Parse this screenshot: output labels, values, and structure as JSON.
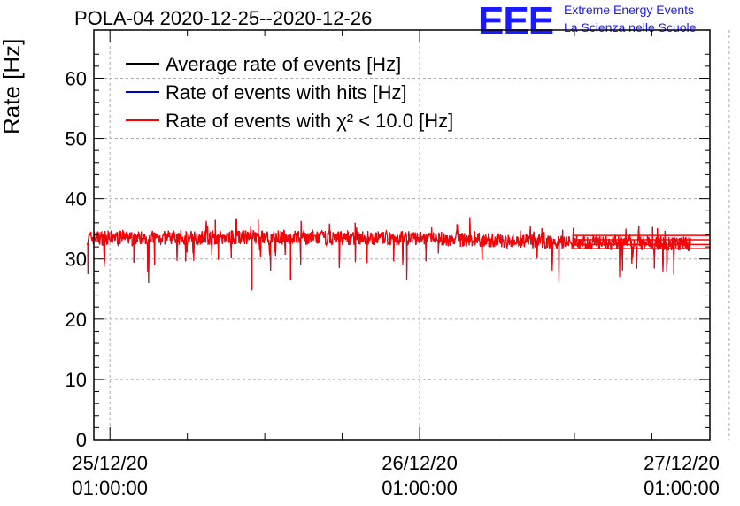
{
  "header": {
    "title": "POLA-04 2020-12-25--2020-12-26",
    "logo_text": "EEE",
    "logo_line1": "Extreme Energy Events",
    "logo_line2": "La Scienza nelle Scuole",
    "logo_color": "#1a1aff"
  },
  "chart_data": {
    "type": "line",
    "title": "POLA-04 2020-12-25--2020-12-26",
    "ylabel": "Rate [Hz]",
    "xlabel": "",
    "ylim": [
      0,
      68
    ],
    "yticks": [
      0,
      10,
      20,
      30,
      40,
      50,
      60
    ],
    "xlim_hours": [
      -1.25,
      46.5
    ],
    "x_axis_note": "time axis; tick labels show date and time",
    "xticks": [
      {
        "label_date": "25/12/20",
        "label_time": "01:00:00",
        "hours": 0
      },
      {
        "label_date": "26/12/20",
        "label_time": "01:00:00",
        "hours": 24
      },
      {
        "label_date": "27/12/20",
        "label_time": "01:00:00",
        "hours": 48
      }
    ],
    "grid": true,
    "legend_position": "top-left",
    "series": [
      {
        "name": "Average rate of events [Hz]",
        "color": "#000000"
      },
      {
        "name": "Rate of events with hits [Hz]",
        "color": "#0000cc"
      },
      {
        "name": "Rate of events with χ² < 10.0 [Hz]",
        "color": "#ff0000"
      }
    ],
    "data_range_hours": [
      -1.75,
      45.0
    ],
    "approx_mean_rate": [
      {
        "hours": -1.75,
        "value": 33.5
      },
      {
        "hours": 12,
        "value": 33.6
      },
      {
        "hours": 24,
        "value": 33.4
      },
      {
        "hours": 35,
        "value": 32.8
      },
      {
        "hours": 45,
        "value": 32.5
      }
    ],
    "notable_dips": [
      {
        "hours": -1.7,
        "value": 27.5
      },
      {
        "hours": 3.0,
        "value": 26.0
      },
      {
        "hours": 11.0,
        "value": 24.8
      },
      {
        "hours": 14.0,
        "value": 26.5
      },
      {
        "hours": 23.0,
        "value": 26.5
      },
      {
        "hours": 34.8,
        "value": 26.0
      },
      {
        "hours": 39.5,
        "value": 27.0
      }
    ],
    "notable_peaks": [
      {
        "hours": 11.5,
        "value": 36.5
      },
      {
        "hours": 19.0,
        "value": 36.0
      }
    ],
    "trailing_segments": [
      33.9,
      33.2,
      32.4,
      31.7
    ]
  }
}
